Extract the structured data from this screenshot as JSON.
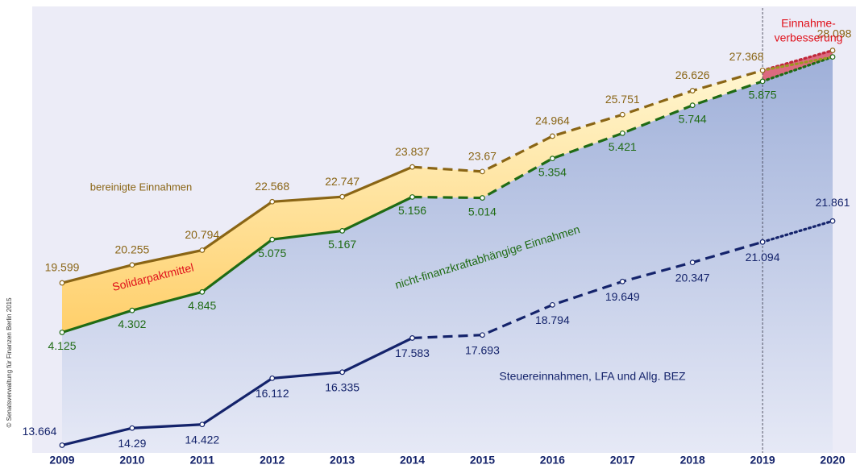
{
  "chart_data": {
    "type": "line",
    "categories": [
      "2009",
      "2010",
      "2011",
      "2012",
      "2013",
      "2014",
      "2015",
      "2016",
      "2017",
      "2018",
      "2019",
      "2020"
    ],
    "series": [
      {
        "name": "Steuereinnahmen, LFA und Allg. BEZ",
        "color": "#14236b",
        "values": [
          13.664,
          14.29,
          14.422,
          16.112,
          16.335,
          17.583,
          17.693,
          18.794,
          19.649,
          20.347,
          21.094,
          21.861
        ]
      },
      {
        "name": "nicht-finanzkraftabhängige Einnahmen",
        "color": "#1f6b14",
        "stacked": true,
        "values": [
          4.125,
          4.302,
          4.845,
          5.075,
          5.167,
          5.156,
          5.014,
          5.354,
          5.421,
          5.744,
          5.875,
          6.0
        ],
        "value_labels": [
          "4.125",
          "4.302",
          "4.845",
          "5.075",
          "5.167",
          "5.156",
          "5.014",
          "5.354",
          "5.421",
          "5.744",
          "5.875",
          null
        ]
      },
      {
        "name": "bereinigte Einnahmen",
        "color": "#8a6515",
        "values": [
          19.599,
          20.255,
          20.794,
          22.568,
          22.747,
          23.837,
          23.67,
          24.964,
          25.751,
          26.626,
          27.368,
          28.098
        ]
      }
    ],
    "band_label": "Solidarpaktmittel",
    "improvement_label": [
      "Einnahme-",
      "verbesserung"
    ],
    "source": "© Senatsverwaltung für Finanzen Berlin 2015",
    "ylim": [
      13.0,
      29.5
    ]
  }
}
